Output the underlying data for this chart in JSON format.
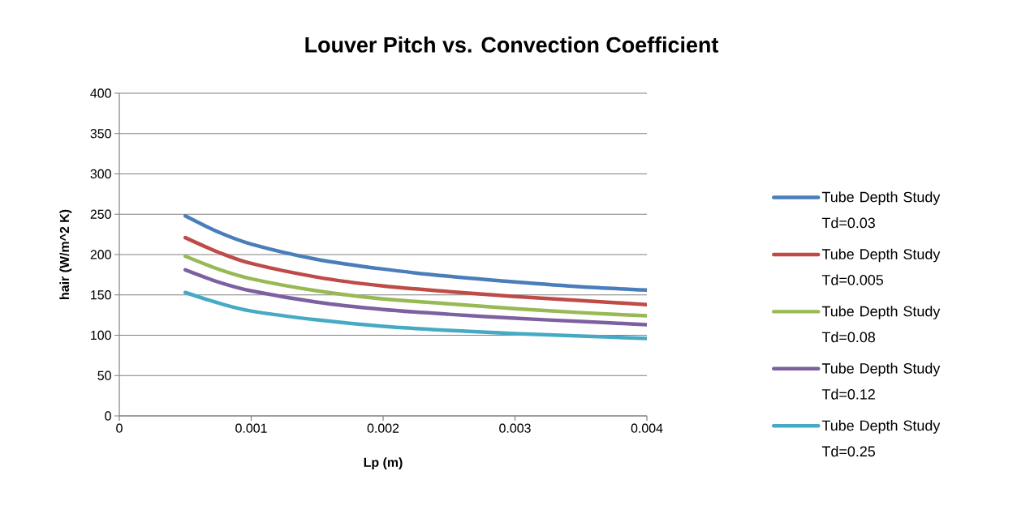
{
  "chart_data": {
    "type": "line",
    "title": "Louver Pitch vs. Convection Coefficient",
    "xlabel": "Lp (m)",
    "ylabel": "hair (W/m^2 K)",
    "x": [
      0.0005,
      0.00075,
      0.001,
      0.0015,
      0.002,
      0.0025,
      0.003,
      0.0035,
      0.004
    ],
    "series": [
      {
        "name": "Tube Depth Study Td=0.03",
        "color": "#4a7ebb",
        "values": [
          248,
          228,
          213,
          194,
          182,
          173,
          166,
          160,
          156
        ]
      },
      {
        "name": "Tube Depth Study Td=0.005",
        "color": "#be4b48",
        "values": [
          221,
          203,
          189,
          172,
          161,
          154,
          148,
          143,
          138
        ]
      },
      {
        "name": "Tube Depth Study Td=0.08",
        "color": "#98b954",
        "values": [
          198,
          182,
          170,
          155,
          145,
          139,
          133,
          128,
          124
        ]
      },
      {
        "name": "Tube Depth Study Td=0.12",
        "color": "#7d60a0",
        "values": [
          181,
          166,
          155,
          141,
          132,
          126,
          121,
          117,
          113
        ]
      },
      {
        "name": "Tube Depth Study Td=0.25",
        "color": "#46aac5",
        "values": [
          153,
          140,
          130,
          119,
          111,
          106,
          102,
          99,
          96
        ]
      }
    ],
    "xlim": [
      0,
      0.004
    ],
    "ylim": [
      0,
      400
    ],
    "xticks": [
      0,
      0.001,
      0.002,
      0.003,
      0.004
    ],
    "yticks": [
      0,
      50,
      100,
      150,
      200,
      250,
      300,
      350,
      400
    ],
    "grid": "y",
    "legend": "right",
    "marker": "none",
    "line_style": "solid"
  }
}
